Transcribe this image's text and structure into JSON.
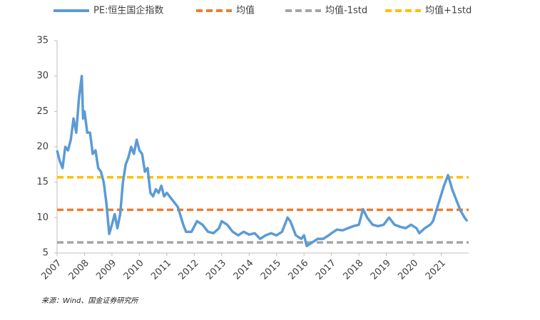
{
  "chart_data": {
    "type": "line",
    "xlim": [
      2007,
      2022
    ],
    "xticks": [
      2007,
      2008,
      2009,
      2010,
      2011,
      2012,
      2013,
      2014,
      2015,
      2016,
      2017,
      2018,
      2019,
      2020,
      2021
    ],
    "ylim": [
      5,
      35
    ],
    "yticks": [
      5,
      10,
      15,
      20,
      25,
      30,
      35
    ],
    "grid": false,
    "legend": "top",
    "series": [
      {
        "name": "PE:恒生国企指数",
        "color": "#5b9bd5",
        "x": [
          2007.0,
          2007.1,
          2007.2,
          2007.3,
          2007.4,
          2007.5,
          2007.6,
          2007.7,
          2007.8,
          2007.9,
          2007.95,
          2008.0,
          2008.1,
          2008.2,
          2008.3,
          2008.4,
          2008.5,
          2008.6,
          2008.7,
          2008.8,
          2008.9,
          2009.0,
          2009.1,
          2009.2,
          2009.3,
          2009.4,
          2009.5,
          2009.6,
          2009.7,
          2009.8,
          2009.9,
          2010.0,
          2010.1,
          2010.2,
          2010.3,
          2010.4,
          2010.5,
          2010.6,
          2010.7,
          2010.8,
          2010.9,
          2011.0,
          2011.2,
          2011.4,
          2011.6,
          2011.7,
          2011.9,
          2012.1,
          2012.3,
          2012.5,
          2012.7,
          2012.9,
          2013.0,
          2013.2,
          2013.4,
          2013.6,
          2013.8,
          2014.0,
          2014.2,
          2014.4,
          2014.6,
          2014.8,
          2015.0,
          2015.2,
          2015.4,
          2015.5,
          2015.7,
          2015.9,
          2016.0,
          2016.1,
          2016.3,
          2016.5,
          2016.7,
          2016.9,
          2017.0,
          2017.2,
          2017.4,
          2017.6,
          2017.8,
          2018.0,
          2018.15,
          2018.3,
          2018.5,
          2018.7,
          2018.9,
          2019.1,
          2019.3,
          2019.5,
          2019.7,
          2019.9,
          2020.1,
          2020.2,
          2020.4,
          2020.6,
          2020.7,
          2020.9,
          2021.1,
          2021.25,
          2021.4,
          2021.55,
          2021.7,
          2021.85,
          2021.95
        ],
        "values": [
          19.5,
          18,
          17,
          20,
          19.5,
          21,
          24,
          22,
          27,
          30,
          24,
          25,
          22,
          22,
          19,
          19.5,
          17,
          16.5,
          15,
          12,
          7.7,
          9,
          10.5,
          8.5,
          10.5,
          15,
          17.5,
          18.5,
          20,
          19,
          21,
          19.5,
          19,
          16.5,
          17,
          13.5,
          13,
          14,
          13.5,
          14.5,
          13,
          13.5,
          12.5,
          11.5,
          9,
          8,
          8,
          9.5,
          9,
          8,
          7.8,
          8.5,
          9.5,
          9,
          8,
          7.5,
          8,
          7.6,
          7.8,
          7,
          7.5,
          7.8,
          7.5,
          8,
          10,
          9.5,
          7.5,
          7,
          7.5,
          6,
          6.5,
          7,
          7,
          7.5,
          7.8,
          8.3,
          8.2,
          8.5,
          8.8,
          9,
          11.2,
          10,
          9,
          8.8,
          9,
          10,
          9,
          8.7,
          8.5,
          9,
          8.5,
          7.8,
          8.5,
          9,
          9.5,
          12,
          14.5,
          16,
          14,
          12.5,
          11,
          10,
          9.5
        ]
      }
    ],
    "reference_lines": [
      {
        "name": "均值",
        "color": "#ed7d31",
        "value": 11.1
      },
      {
        "name": "均值-1std",
        "color": "#a5a5a5",
        "value": 6.5
      },
      {
        "name": "均值+1std",
        "color": "#ffc000",
        "value": 15.7
      }
    ],
    "source": "来源：Wind、国金证券研究所"
  }
}
